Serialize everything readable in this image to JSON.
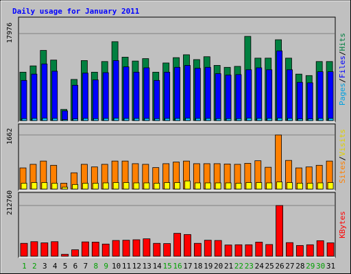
{
  "chart_data": {
    "type": "bar",
    "title": "Daily usage for January 2011",
    "categories": [
      "1",
      "2",
      "3",
      "4",
      "5",
      "6",
      "7",
      "8",
      "9",
      "10",
      "11",
      "12",
      "13",
      "14",
      "15",
      "16",
      "17",
      "18",
      "19",
      "20",
      "21",
      "22",
      "23",
      "24",
      "25",
      "26",
      "27",
      "28",
      "29",
      "30",
      "31"
    ],
    "weekend_days": [
      "1",
      "2",
      "8",
      "9",
      "15",
      "16",
      "22",
      "23",
      "29",
      "30"
    ],
    "panels": [
      {
        "id": "pages-files-hits",
        "ylim": [
          0,
          17976
        ],
        "y_tick_label": "17976",
        "legend": [
          "Pages",
          "/",
          "Files",
          "/",
          "Hits"
        ],
        "series": [
          {
            "name": "Hits",
            "color": "#008040",
            "values": [
              10000,
              11300,
              14500,
              12500,
              2300,
              8500,
              12400,
              10000,
              12200,
              16300,
              13100,
              12300,
              12800,
              10000,
              11900,
              13000,
              13600,
              12600,
              13200,
              11400,
              11000,
              11200,
              17400,
              12900,
              12900,
              16700,
              12900,
              9600,
              9300,
              12200,
              12200
            ]
          },
          {
            "name": "Files",
            "color": "#0000ff",
            "values": [
              8300,
              9600,
              11700,
              10200,
              2000,
              7300,
              9800,
              8400,
              9900,
              12400,
              11100,
              10000,
              10900,
              8300,
              10000,
              11000,
              11400,
              10800,
              11000,
              9700,
              9400,
              9500,
              10500,
              10900,
              10500,
              14400,
              10500,
              7900,
              7800,
              10100,
              10100
            ]
          },
          {
            "name": "Pages",
            "color": "#00c0ff",
            "values": [
              400,
              450,
              500,
              450,
              200,
              350,
              450,
              400,
              450,
              500,
              450,
              450,
              450,
              400,
              450,
              450,
              500,
              450,
              450,
              400,
              400,
              400,
              500,
              450,
              450,
              500,
              450,
              350,
              350,
              450,
              450
            ]
          }
        ]
      },
      {
        "id": "sites-visits",
        "ylim": [
          0,
          1662
        ],
        "y_tick_label": "1662",
        "legend": [
          "Sites",
          "/",
          "Visits"
        ],
        "series": [
          {
            "name": "Visits",
            "color": "#ff8000",
            "values": [
              650,
              760,
              860,
              730,
              180,
              500,
              760,
              680,
              760,
              860,
              860,
              780,
              760,
              660,
              780,
              830,
              860,
              780,
              780,
              780,
              770,
              760,
              790,
              870,
              670,
              1662,
              880,
              650,
              680,
              730,
              860
            ]
          },
          {
            "name": "Sites",
            "color": "#ffff00",
            "values": [
              180,
              200,
              200,
              180,
              60,
              140,
              180,
              180,
              190,
              200,
              200,
              190,
              190,
              180,
              200,
              200,
              250,
              190,
              190,
              190,
              190,
              180,
              200,
              200,
              190,
              220,
              200,
              180,
              180,
              190,
              200
            ]
          }
        ]
      },
      {
        "id": "kbytes",
        "ylim": [
          0,
          212760
        ],
        "y_tick_label": "212760",
        "legend": [
          "KBytes"
        ],
        "series": [
          {
            "name": "KBytes",
            "color": "#ff0000",
            "values": [
              54000,
              61000,
              56000,
              61000,
              8000,
              27000,
              60000,
              59000,
              51000,
              66000,
              67000,
              69000,
              73000,
              54000,
              53000,
              96000,
              91000,
              54000,
              67000,
              66000,
              47000,
              48000,
              48000,
              59000,
              49000,
              212760,
              57000,
              45000,
              48000,
              65000,
              56000
            ]
          }
        ]
      }
    ],
    "colors": {
      "background": "#c0c0c0",
      "plot_bg": "#c0c0c0",
      "title": "#0000ff",
      "weekday_label": "#008000",
      "weekend_label": "#00a000",
      "axis_text": "#000000",
      "grid": "#808080"
    }
  }
}
